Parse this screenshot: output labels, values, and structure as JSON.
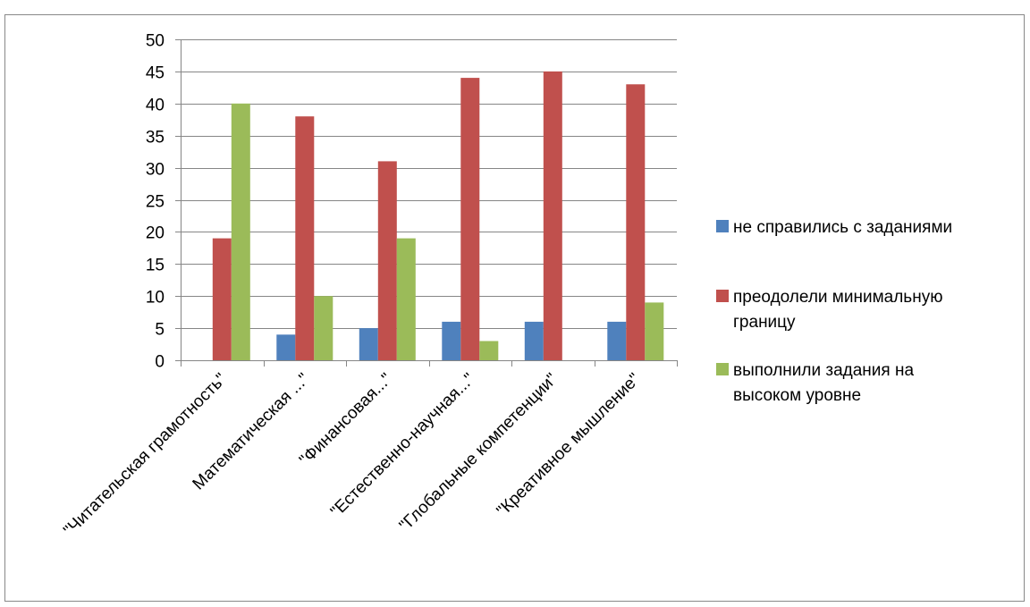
{
  "chart_data": {
    "type": "bar",
    "categories": [
      "\"Читательская грамотность\"",
      "Математическая ...\"",
      "\"Финансовая...\"",
      "\"Естественно-научная...\"",
      "\"Глобальные компетенции\"",
      "\"Креативное мышление\""
    ],
    "series": [
      {
        "name": "не справились с заданиями",
        "color": "#4F81BD",
        "values": [
          0,
          4,
          5,
          6,
          6,
          6
        ]
      },
      {
        "name": "преодолели минимальную границу",
        "color": "#C0504D",
        "values": [
          19,
          38,
          31,
          44,
          45,
          43
        ]
      },
      {
        "name": "выполнили задания на высоком уровне",
        "color": "#9BBB59",
        "values": [
          40,
          10,
          19,
          3,
          0,
          9
        ]
      }
    ],
    "legend_lines": [
      [
        "не справились с заданиями"
      ],
      [
        "преодолели минимальную",
        "границу"
      ],
      [
        "выполнили задания на",
        "высоком уровне"
      ]
    ],
    "ylim": [
      0,
      50
    ],
    "yticks": [
      0,
      5,
      10,
      15,
      20,
      25,
      30,
      35,
      40,
      45,
      50
    ],
    "grid": true,
    "legend_position": "right"
  }
}
